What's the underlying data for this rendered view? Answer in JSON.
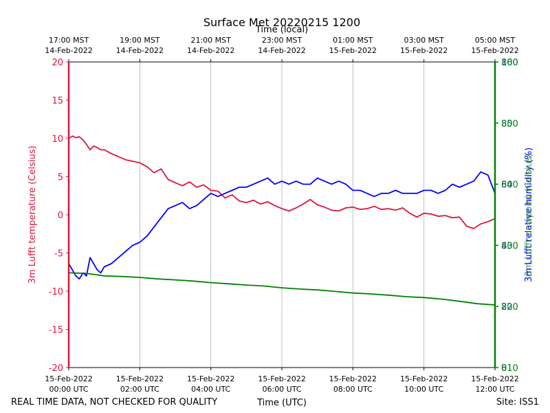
{
  "chart_data": {
    "type": "line",
    "title": "Surface Met 20220215 1200",
    "top_axis_label": "Time (local)",
    "xlabel": "Time (UTC)",
    "footer_left": "REAL TIME DATA, NOT CHECKED FOR QUALITY",
    "footer_right": "Site: ISS1",
    "x_range_hours": [
      0,
      12
    ],
    "bottom_ticks": [
      {
        "hours": 0,
        "line1": "15-Feb-2022",
        "line2": "00:00 UTC"
      },
      {
        "hours": 2,
        "line1": "15-Feb-2022",
        "line2": "02:00 UTC"
      },
      {
        "hours": 4,
        "line1": "15-Feb-2022",
        "line2": "04:00 UTC"
      },
      {
        "hours": 6,
        "line1": "15-Feb-2022",
        "line2": "06:00 UTC"
      },
      {
        "hours": 8,
        "line1": "15-Feb-2022",
        "line2": "08:00 UTC"
      },
      {
        "hours": 10,
        "line1": "15-Feb-2022",
        "line2": "10:00 UTC"
      },
      {
        "hours": 12,
        "line1": "15-Feb-2022",
        "line2": "12:00 UTC"
      }
    ],
    "top_ticks": [
      {
        "hours": 0,
        "line1": "17:00 MST",
        "line2": "14-Feb-2022"
      },
      {
        "hours": 2,
        "line1": "19:00 MST",
        "line2": "14-Feb-2022"
      },
      {
        "hours": 4,
        "line1": "21:00 MST",
        "line2": "14-Feb-2022"
      },
      {
        "hours": 6,
        "line1": "23:00 MST",
        "line2": "14-Feb-2022"
      },
      {
        "hours": 8,
        "line1": "01:00 MST",
        "line2": "15-Feb-2022"
      },
      {
        "hours": 10,
        "line1": "03:00 MST",
        "line2": "15-Feb-2022"
      },
      {
        "hours": 12,
        "line1": "05:00 MST",
        "line2": "15-Feb-2022"
      }
    ],
    "left_axis": {
      "label": "3m Lufft temperature (Celsius)",
      "color": "#dc143c",
      "ylim": [
        -20,
        20
      ],
      "ticks": [
        -20,
        -15,
        -10,
        -5,
        0,
        5,
        10,
        15,
        20
      ]
    },
    "right_axis": {
      "label_overlap": "3m Lufft relative humidity (%)",
      "label_blue": "3m Lufft relative humidity (%)",
      "label_green": "3m Lufft dewpoint (Celsius)",
      "color_blue": "#0000ff",
      "color_green": "#008000",
      "ylim": [
        0,
        100
      ],
      "tick_labels": [
        {
          "value": 0,
          "overlay": "0",
          "text": "810"
        },
        {
          "value": 20,
          "overlay": "20",
          "text": "820"
        },
        {
          "value": 40,
          "overlay": "40",
          "text": "830"
        },
        {
          "value": 60,
          "overlay": "60",
          "text": "840"
        },
        {
          "value": 80,
          "overlay": "80",
          "text": "850"
        },
        {
          "value": 100,
          "overlay": "100",
          "text": "860"
        }
      ]
    },
    "series": [
      {
        "name": "temperature",
        "axis": "left",
        "color": "#dc143c",
        "x_hours": [
          0,
          0.1,
          0.2,
          0.3,
          0.4,
          0.5,
          0.6,
          0.7,
          0.8,
          0.9,
          1,
          1.2,
          1.4,
          1.6,
          1.8,
          2,
          2.2,
          2.4,
          2.6,
          2.8,
          3,
          3.2,
          3.4,
          3.6,
          3.8,
          4,
          4.2,
          4.4,
          4.6,
          4.8,
          5,
          5.2,
          5.4,
          5.6,
          5.8,
          6,
          6.2,
          6.4,
          6.6,
          6.8,
          7,
          7.2,
          7.4,
          7.6,
          7.8,
          8,
          8.2,
          8.4,
          8.6,
          8.8,
          9,
          9.2,
          9.4,
          9.6,
          9.8,
          10,
          10.2,
          10.4,
          10.6,
          10.8,
          11,
          11.2,
          11.4,
          11.6,
          11.8,
          12
        ],
        "values": [
          10,
          10.3,
          10.1,
          10.2,
          9.8,
          9.2,
          8.5,
          9,
          8.8,
          8.5,
          8.5,
          8,
          7.6,
          7.2,
          7,
          6.8,
          6.3,
          5.5,
          6,
          4.6,
          4.2,
          3.8,
          4.3,
          3.6,
          3.9,
          3.2,
          3.1,
          2.2,
          2.6,
          1.8,
          1.6,
          1.9,
          1.4,
          1.7,
          1.2,
          0.8,
          0.5,
          0.9,
          1.4,
          2,
          1.3,
          1,
          0.6,
          0.5,
          0.9,
          1,
          0.7,
          0.8,
          1.1,
          0.7,
          0.8,
          0.6,
          0.9,
          0.2,
          -0.3,
          0.2,
          0.1,
          -0.2,
          -0.1,
          -0.4,
          -0.3,
          -1.5,
          -1.8,
          -1.2,
          -0.9,
          -0.5
        ]
      },
      {
        "name": "relative humidity",
        "axis": "right",
        "color": "#0000ff",
        "x_hours": [
          0,
          0.1,
          0.2,
          0.3,
          0.4,
          0.5,
          0.6,
          0.7,
          0.8,
          0.9,
          1,
          1.2,
          1.4,
          1.6,
          1.8,
          2,
          2.2,
          2.4,
          2.6,
          2.8,
          3,
          3.2,
          3.4,
          3.6,
          3.8,
          4,
          4.2,
          4.4,
          4.6,
          4.8,
          5,
          5.2,
          5.4,
          5.6,
          5.8,
          6,
          6.2,
          6.4,
          6.6,
          6.8,
          7,
          7.2,
          7.4,
          7.6,
          7.8,
          8,
          8.2,
          8.4,
          8.6,
          8.8,
          9,
          9.2,
          9.4,
          9.6,
          9.8,
          10,
          10.2,
          10.4,
          10.6,
          10.8,
          11,
          11.2,
          11.4,
          11.6,
          11.8,
          12
        ],
        "values": [
          34,
          32,
          30,
          29,
          31,
          30,
          36,
          34,
          32,
          31,
          33,
          34,
          36,
          38,
          40,
          41,
          43,
          46,
          49,
          52,
          53,
          54,
          52,
          53,
          55,
          57,
          56,
          57,
          58,
          59,
          59,
          60,
          61,
          62,
          60,
          61,
          60,
          61,
          60,
          60,
          62,
          61,
          60,
          61,
          60,
          58,
          58,
          57,
          56,
          57,
          57,
          58,
          57,
          57,
          57,
          58,
          58,
          57,
          58,
          60,
          59,
          60,
          61,
          64,
          63,
          57
        ]
      },
      {
        "name": "dewpoint",
        "axis": "right",
        "color": "#008000",
        "x_hours": [
          0,
          0.5,
          1,
          1.5,
          2,
          2.5,
          3,
          3.5,
          4,
          4.5,
          5,
          5.5,
          6,
          6.5,
          7,
          7.5,
          8,
          8.5,
          9,
          9.5,
          10,
          10.5,
          11,
          11.5,
          12
        ],
        "values": [
          31,
          30.8,
          30,
          29.8,
          29.5,
          29,
          28.7,
          28.3,
          27.8,
          27.4,
          27,
          26.7,
          26.1,
          25.7,
          25.4,
          24.9,
          24.4,
          24.1,
          23.7,
          23.2,
          22.9,
          22.4,
          21.7,
          20.9,
          20.5
        ]
      }
    ]
  }
}
